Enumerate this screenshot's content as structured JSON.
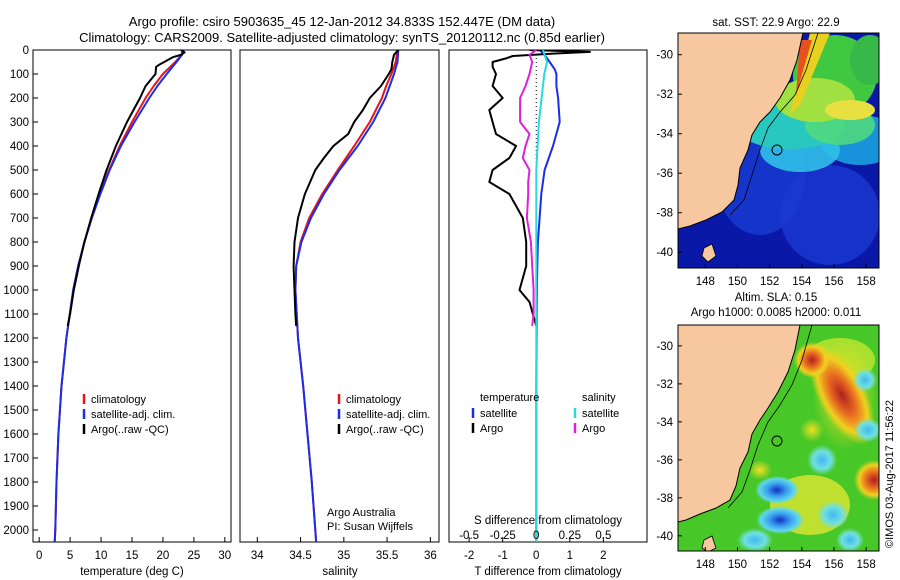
{
  "header": {
    "line1": "Argo profile: csiro 5903635_45 12-Jan-2012 34.833S 152.447E (DM data)",
    "line2": "Climatology: CARS2009. Satellite-adjusted climatology: synTS_20120112.nc (0.85d earlier)"
  },
  "colors": {
    "clim": "#e8141a",
    "sat": "#1a2ee8",
    "argo": "#000000",
    "sat_s": "#2ad8e0",
    "argo_s": "#e020d8",
    "land": "#f7c8a0"
  },
  "chart_data": [
    {
      "type": "line",
      "id": "temperature",
      "xlabel": "temperature (deg C)",
      "ylabel": "",
      "xlim": [
        -1,
        31
      ],
      "ylim": [
        2050,
        0
      ],
      "xticks": [
        "0",
        "5",
        "10",
        "15",
        "20",
        "25",
        "30"
      ],
      "yticks": [
        "0",
        "100",
        "200",
        "300",
        "400",
        "500",
        "600",
        "700",
        "800",
        "900",
        "1000",
        "1100",
        "1200",
        "1300",
        "1400",
        "1500",
        "1600",
        "1700",
        "1800",
        "1900",
        "2000"
      ],
      "series": [
        {
          "name": "climatology",
          "color": "#e8141a",
          "depth": [
            0,
            20,
            50,
            100,
            150,
            200,
            300,
            400,
            500,
            600,
            700,
            800,
            900,
            1000,
            1200,
            1400,
            1600,
            1800,
            2000,
            2050
          ],
          "values": [
            23.2,
            23.0,
            22.0,
            20.0,
            18.5,
            17.2,
            15.0,
            13.0,
            11.3,
            9.8,
            8.5,
            7.3,
            6.3,
            5.5,
            4.4,
            3.6,
            3.1,
            2.8,
            2.6,
            2.5
          ]
        },
        {
          "name": "satellite-adj. clim.",
          "color": "#1a2ee8",
          "depth": [
            0,
            20,
            50,
            100,
            150,
            200,
            300,
            400,
            500,
            600,
            700,
            800,
            900,
            1000,
            1200,
            1400,
            1600,
            1800,
            2000,
            2050
          ],
          "values": [
            23.3,
            23.1,
            22.2,
            20.6,
            19.1,
            17.8,
            15.4,
            13.2,
            11.4,
            9.9,
            8.5,
            7.3,
            6.3,
            5.5,
            4.4,
            3.6,
            3.1,
            2.8,
            2.6,
            2.5
          ]
        },
        {
          "name": "Argo(..raw -QC)",
          "color": "#000000",
          "depth": [
            0,
            10,
            20,
            30,
            40,
            50,
            60,
            70,
            100,
            150,
            200,
            300,
            400,
            500,
            600,
            700,
            800,
            900,
            1000,
            1100,
            1150
          ],
          "values": [
            22.9,
            23.5,
            22.9,
            21.6,
            20.9,
            20.2,
            19.5,
            18.9,
            18.8,
            17.2,
            16.3,
            14.2,
            12.4,
            10.9,
            9.6,
            8.4,
            7.3,
            6.4,
            5.6,
            5.0,
            4.6
          ]
        }
      ],
      "legend": [
        "climatology",
        "satellite-adj. clim.",
        "Argo(..raw -QC)"
      ]
    },
    {
      "type": "line",
      "id": "salinity",
      "xlabel": "salinity",
      "xlim": [
        33.8,
        36.1
      ],
      "ylim": [
        2050,
        0
      ],
      "xticks": [
        "34",
        "34.5",
        "35",
        "35.5",
        "36"
      ],
      "series": [
        {
          "name": "climatology",
          "color": "#e8141a",
          "depth": [
            0,
            50,
            100,
            150,
            200,
            300,
            400,
            500,
            600,
            700,
            800,
            900,
            1000,
            1200,
            1400,
            1600,
            1800,
            2000,
            2050
          ],
          "values": [
            35.62,
            35.6,
            35.55,
            35.49,
            35.44,
            35.3,
            35.12,
            34.93,
            34.75,
            34.6,
            34.5,
            34.45,
            34.44,
            34.47,
            34.53,
            34.58,
            34.63,
            34.67,
            34.68
          ]
        },
        {
          "name": "satellite-adj. clim.",
          "color": "#1a2ee8",
          "depth": [
            0,
            50,
            100,
            150,
            200,
            300,
            400,
            500,
            600,
            700,
            800,
            900,
            1000,
            1200,
            1400,
            1600,
            1800,
            2000,
            2050
          ],
          "values": [
            35.63,
            35.62,
            35.58,
            35.53,
            35.48,
            35.34,
            35.16,
            34.95,
            34.77,
            34.62,
            34.51,
            34.45,
            34.44,
            34.47,
            34.53,
            34.58,
            34.63,
            34.67,
            34.68
          ]
        },
        {
          "name": "Argo(..raw -QC)",
          "color": "#000000",
          "depth": [
            0,
            20,
            50,
            80,
            100,
            150,
            200,
            250,
            300,
            350,
            400,
            450,
            500,
            600,
            700,
            800,
            900,
            1000,
            1100,
            1150
          ],
          "values": [
            35.63,
            35.58,
            35.56,
            35.55,
            35.52,
            35.43,
            35.3,
            35.22,
            35.12,
            35.05,
            34.88,
            34.77,
            34.67,
            34.55,
            34.47,
            34.43,
            34.42,
            34.43,
            34.44,
            34.45
          ]
        }
      ],
      "legend": [
        "climatology",
        "satellite-adj. clim.",
        "Argo(..raw -QC)"
      ],
      "annotation": [
        "Argo Australia",
        "PI: Susan Wijffels"
      ]
    },
    {
      "type": "line",
      "id": "difference",
      "xlabel": "T difference from climatology",
      "xlabel_top": "S difference from climatology",
      "xlim": [
        -2.6,
        3.3
      ],
      "ylim": [
        2050,
        0
      ],
      "xticks": [
        "-2",
        "-1",
        "0",
        "1",
        "2"
      ],
      "top_ticks": [
        "-0.5",
        "-0.25",
        "0",
        "0.25",
        "0.5"
      ],
      "series": [
        {
          "name": "temperature satellite",
          "color": "#1a2ee8",
          "depth": [
            0,
            20,
            50,
            80,
            100,
            150,
            200,
            300,
            400,
            500,
            600,
            700,
            800,
            900,
            1000,
            1200,
            1400,
            1600,
            1800,
            2000,
            2050
          ],
          "values": [
            0.1,
            0.25,
            0.4,
            0.55,
            0.6,
            0.6,
            0.65,
            0.7,
            0.5,
            0.25,
            0.15,
            0.1,
            0.05,
            0.03,
            0.02,
            0.01,
            0.0,
            0.0,
            0.0,
            0.0,
            0.0
          ]
        },
        {
          "name": "temperature Argo",
          "color": "#000000",
          "depth": [
            0,
            8,
            15,
            25,
            35,
            50,
            70,
            100,
            150,
            200,
            250,
            300,
            350,
            400,
            450,
            500,
            550,
            600,
            700,
            800,
            900,
            1000,
            1050,
            1100,
            1150
          ],
          "values": [
            -0.2,
            1.6,
            0.5,
            -0.7,
            -0.9,
            -1.3,
            -1.3,
            -1.2,
            -1.3,
            -1.0,
            -1.4,
            -1.3,
            -1.2,
            -0.6,
            -0.8,
            -1.3,
            -1.4,
            -0.8,
            -0.4,
            -0.3,
            -0.3,
            -0.5,
            -0.2,
            -0.1,
            0.0
          ]
        },
        {
          "name": "salinity satellite",
          "color": "#2ad8e0",
          "depth": [
            0,
            50,
            100,
            200,
            300,
            400,
            500,
            700,
            900,
            1100,
            1300,
            1500,
            1700,
            1900,
            2050
          ],
          "values": [
            0.05,
            0.08,
            0.06,
            0.04,
            0.02,
            0.01,
            0.0,
            0.0,
            0.0,
            0.0,
            0.0,
            0.0,
            0.0,
            0.0,
            0.0
          ]
        },
        {
          "name": "salinity Argo",
          "color": "#e020d8",
          "depth": [
            0,
            20,
            50,
            100,
            150,
            200,
            250,
            300,
            350,
            400,
            450,
            500,
            550,
            600,
            700,
            800,
            900,
            1000,
            1100,
            1150
          ],
          "values": [
            0.0,
            -0.05,
            -0.03,
            -0.05,
            -0.08,
            -0.12,
            -0.12,
            -0.12,
            -0.05,
            -0.08,
            -0.1,
            -0.05,
            -0.06,
            -0.06,
            -0.07,
            -0.04,
            -0.03,
            -0.02,
            -0.02,
            -0.03
          ]
        }
      ],
      "legend_headers": [
        "temperature",
        "salinity"
      ],
      "legend": [
        "satellite",
        "Argo",
        "satellite",
        "Argo"
      ]
    },
    {
      "type": "heatmap",
      "id": "sst-map",
      "title": "sat. SST: 22.9 Argo: 22.9",
      "xticks": [
        "148",
        "150",
        "152",
        "154",
        "156",
        "158"
      ],
      "yticks": [
        "-30",
        "-32",
        "-34",
        "-36",
        "-38",
        "-40"
      ],
      "xlim": [
        146.3,
        158.8
      ],
      "ylim": [
        -40.8,
        -28.9
      ],
      "marker": {
        "lon": 152.447,
        "lat": -34.833
      }
    },
    {
      "type": "heatmap",
      "id": "sla-map",
      "title_line1": "Altim. SLA: 0.15",
      "title_line2": "Argo h1000: 0.0085 h2000: 0.011",
      "xticks": [
        "148",
        "150",
        "152",
        "154",
        "156",
        "158"
      ],
      "yticks": [
        "-30",
        "-32",
        "-34",
        "-36",
        "-38",
        "-40"
      ],
      "xlim": [
        146.3,
        158.8
      ],
      "ylim": [
        -40.8,
        -28.9
      ],
      "marker": {
        "lon": 152.447,
        "lat": -34.833
      }
    }
  ],
  "footer": {
    "credit": "©IMOS 03-Aug-2017 11:56:22"
  }
}
